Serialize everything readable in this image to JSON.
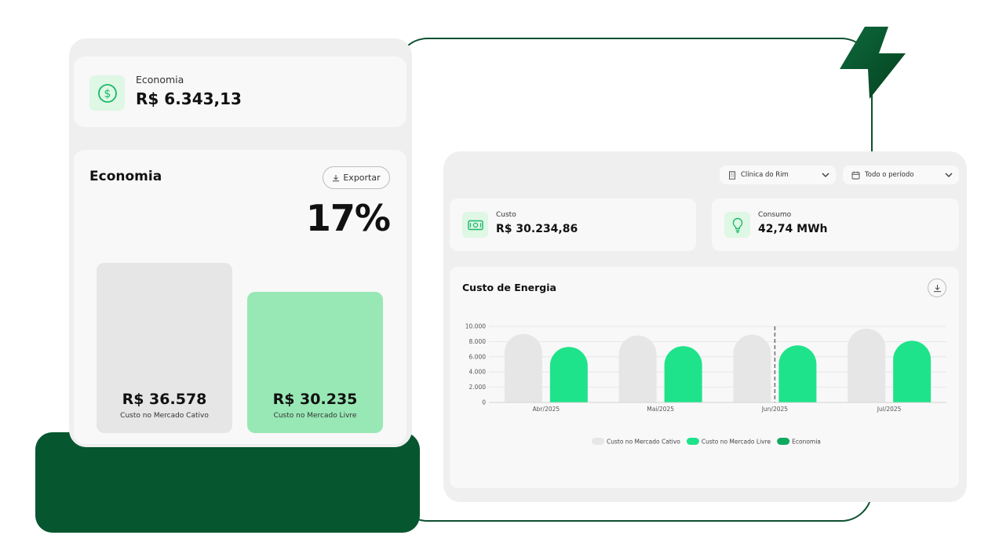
{
  "economia_card": {
    "label": "Economia",
    "value": "R$ 6.343,13",
    "icon": "dollar-circle-icon"
  },
  "economia_panel": {
    "title": "Economia",
    "export_label": "Exportar",
    "percent": "17%",
    "bars": [
      {
        "value_text": "R$ 36.578",
        "caption": "Custo no Mercado Cativo",
        "value": 36578,
        "color": "#e6e6e6"
      },
      {
        "value_text": "R$ 30.235",
        "caption": "Custo no Mercado Livre",
        "value": 30235,
        "color": "#98e8b5"
      }
    ]
  },
  "filters": {
    "clinic": "Clínica do Rim",
    "period": "Todo o período"
  },
  "stats": {
    "custo_label": "Custo",
    "custo_value": "R$ 30.234,86",
    "consumo_label": "Consumo",
    "consumo_value": "42,74 MWh"
  },
  "colors": {
    "brand_dark": "#06562f",
    "cativo": "#e6e6e6",
    "livre": "#1ee38a",
    "economia": "#0faa5f"
  },
  "chart_data": {
    "type": "bar",
    "title": "Custo de Energia",
    "categories": [
      "Abr/2025",
      "Mai/2025",
      "Jun/2025",
      "Jul/2025"
    ],
    "y_ticks": [
      "10.000",
      "8.000",
      "6.000",
      "4.000",
      "2.000",
      "0"
    ],
    "ylim": [
      0,
      10000
    ],
    "grid": true,
    "legend_position": "bottom-center",
    "series": [
      {
        "name": "Custo no Mercado Cativo",
        "values": [
          9000,
          8800,
          8900,
          9700
        ],
        "color": "#e6e6e6"
      },
      {
        "name": "Custo no Mercado Livre",
        "values": [
          7300,
          7400,
          7500,
          8100
        ],
        "color": "#1ee38a"
      }
    ],
    "legend": [
      {
        "name": "Custo no Mercado Cativo",
        "color": "#e6e6e6"
      },
      {
        "name": "Custo no Mercado Livre",
        "color": "#1ee38a"
      },
      {
        "name": "Economia",
        "color": "#0faa5f"
      }
    ],
    "marker_category": "Jun/2025"
  }
}
